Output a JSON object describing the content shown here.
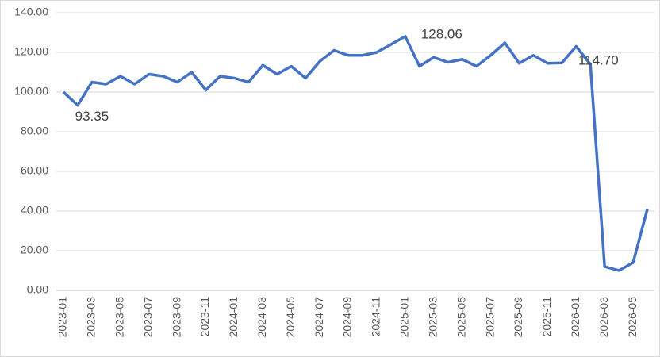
{
  "chart_data": {
    "type": "line",
    "categories": [
      "2023-01",
      null,
      "2023-03",
      null,
      "2023-05",
      null,
      "2023-07",
      null,
      "2023-09",
      null,
      "2023-11",
      null,
      "2024-01",
      null,
      "2024-03",
      null,
      "2024-05",
      null,
      "2024-07",
      null,
      "2024-09",
      null,
      "2024-11",
      null,
      "2025-01",
      null,
      "2025-03",
      null,
      "2025-05",
      null,
      "2025-07",
      null,
      "2025-09",
      null,
      "2025-11",
      null,
      "2026-01",
      null,
      "2026-03",
      null,
      "2026-05",
      null
    ],
    "series": [
      {
        "color": "#4472c4",
        "values": [
          100.0,
          93.35,
          105,
          104,
          108,
          104,
          109,
          108,
          105,
          110,
          101,
          108,
          107,
          105,
          113.5,
          109,
          113,
          107,
          115.5,
          121,
          118.5,
          118.5,
          120,
          124,
          128.06,
          113,
          117.5,
          115,
          116.5,
          113,
          118.5,
          124.8,
          114.5,
          118.5,
          114.5,
          114.7,
          123,
          114,
          12,
          10,
          14,
          41
        ],
        "value_labels": [
          null,
          "93.35",
          null,
          null,
          null,
          null,
          null,
          null,
          null,
          null,
          null,
          null,
          null,
          null,
          null,
          null,
          null,
          null,
          null,
          null,
          null,
          null,
          null,
          null,
          "128.06",
          null,
          null,
          null,
          null,
          null,
          null,
          null,
          null,
          null,
          null,
          "114.70",
          null,
          null,
          null,
          null,
          null,
          null
        ]
      }
    ],
    "ylim": [
      0,
      140
    ],
    "yticks": [
      {
        "value": 0,
        "label": "0.00"
      },
      {
        "value": 20,
        "label": "20.00"
      },
      {
        "value": 40,
        "label": "40.00"
      },
      {
        "value": 60,
        "label": "60.00"
      },
      {
        "value": 80,
        "label": "80.00"
      },
      {
        "value": 100,
        "label": "100.00"
      },
      {
        "value": 120,
        "label": "120.00"
      },
      {
        "value": 140,
        "label": "140.00"
      }
    ],
    "grid": true
  }
}
